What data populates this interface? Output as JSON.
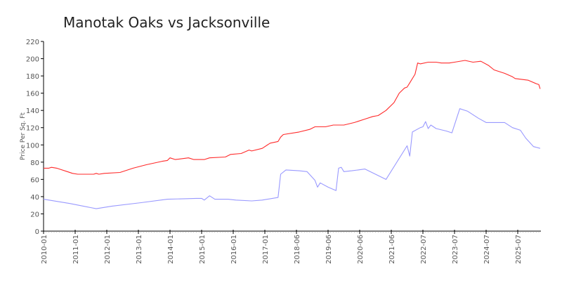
{
  "chart_data": {
    "type": "line",
    "title": "Manotak Oaks vs Jacksonville",
    "xlabel": "",
    "ylabel": "Price Per Sq. Ft",
    "ylim": [
      0,
      220
    ],
    "yticks": [
      0,
      20,
      40,
      60,
      80,
      100,
      120,
      140,
      160,
      180,
      200,
      220
    ],
    "xlim": [
      0,
      190
    ],
    "xtick_labels": [
      "2010-01",
      "2011-01",
      "2012-01",
      "2013-01",
      "2014-01",
      "2015-01",
      "2016-01",
      "2017-01",
      "2018-06",
      "2019-06",
      "2020-06",
      "2021-06",
      "2022-07",
      "2023-07",
      "2024-07",
      "2025-07"
    ],
    "xtick_index_step": 12,
    "grid": false,
    "legend": "none",
    "series": [
      {
        "color": "#ff2a2a",
        "points": [
          [
            0,
            73
          ],
          [
            2,
            73
          ],
          [
            3,
            74
          ],
          [
            5,
            73
          ],
          [
            6,
            72
          ],
          [
            9,
            69
          ],
          [
            11,
            67
          ],
          [
            13,
            66
          ],
          [
            19,
            66
          ],
          [
            20,
            67
          ],
          [
            21,
            66
          ],
          [
            23,
            67
          ],
          [
            29,
            68
          ],
          [
            34,
            73
          ],
          [
            39,
            77
          ],
          [
            45,
            81
          ],
          [
            47,
            82
          ],
          [
            48,
            85
          ],
          [
            50,
            83
          ],
          [
            55,
            85
          ],
          [
            57,
            83
          ],
          [
            61,
            83
          ],
          [
            63,
            85
          ],
          [
            69,
            86
          ],
          [
            71,
            89
          ],
          [
            75,
            90
          ],
          [
            78,
            94
          ],
          [
            79,
            93
          ],
          [
            83,
            96
          ],
          [
            86,
            102
          ],
          [
            89,
            104
          ],
          [
            90,
            109
          ],
          [
            91,
            112
          ],
          [
            97,
            115
          ],
          [
            101,
            118
          ],
          [
            103,
            121
          ],
          [
            107,
            121
          ],
          [
            110,
            123
          ],
          [
            114,
            123
          ],
          [
            118,
            126
          ],
          [
            122,
            130
          ],
          [
            125,
            133
          ],
          [
            127,
            134
          ],
          [
            130,
            140
          ],
          [
            133,
            149
          ],
          [
            135,
            160
          ],
          [
            137,
            166
          ],
          [
            138,
            167
          ],
          [
            139,
            172
          ],
          [
            141,
            182
          ],
          [
            142,
            195
          ],
          [
            143,
            194
          ],
          [
            146,
            196
          ],
          [
            149,
            196
          ],
          [
            151,
            195
          ],
          [
            154,
            195
          ],
          [
            156,
            196
          ],
          [
            160,
            198
          ],
          [
            163,
            196
          ],
          [
            166,
            197
          ],
          [
            169,
            192
          ],
          [
            171,
            187
          ],
          [
            175,
            183
          ],
          [
            178,
            179
          ],
          [
            179,
            177
          ],
          [
            184,
            175
          ],
          [
            187,
            171
          ],
          [
            188,
            170
          ],
          [
            188.5,
            165
          ]
        ]
      },
      {
        "color": "#9999ff",
        "points": [
          [
            0,
            37
          ],
          [
            10,
            32
          ],
          [
            20,
            26
          ],
          [
            26,
            29
          ],
          [
            37,
            33
          ],
          [
            47,
            37
          ],
          [
            58,
            38
          ],
          [
            60,
            38
          ],
          [
            61,
            36
          ],
          [
            63,
            41
          ],
          [
            65,
            37
          ],
          [
            70,
            37
          ],
          [
            73,
            36
          ],
          [
            79,
            35
          ],
          [
            83,
            36
          ],
          [
            89,
            39
          ],
          [
            90,
            66
          ],
          [
            92,
            71
          ],
          [
            97,
            70
          ],
          [
            100,
            69
          ],
          [
            103,
            59
          ],
          [
            104,
            51
          ],
          [
            105,
            56
          ],
          [
            108,
            51
          ],
          [
            111,
            47
          ],
          [
            112,
            73
          ],
          [
            113,
            74
          ],
          [
            114,
            69
          ],
          [
            117,
            70
          ],
          [
            122,
            72
          ],
          [
            130,
            60
          ],
          [
            138,
            99
          ],
          [
            139,
            87
          ],
          [
            140,
            115
          ],
          [
            143,
            120
          ],
          [
            144,
            121
          ],
          [
            145,
            127
          ],
          [
            146,
            119
          ],
          [
            147,
            123
          ],
          [
            149,
            119
          ],
          [
            153,
            116
          ],
          [
            155,
            114
          ],
          [
            158,
            142
          ],
          [
            161,
            139
          ],
          [
            165,
            131
          ],
          [
            168,
            126
          ],
          [
            175,
            126
          ],
          [
            178,
            120
          ],
          [
            181,
            117
          ],
          [
            183,
            108
          ],
          [
            186,
            98
          ],
          [
            188.5,
            96
          ]
        ]
      }
    ]
  }
}
